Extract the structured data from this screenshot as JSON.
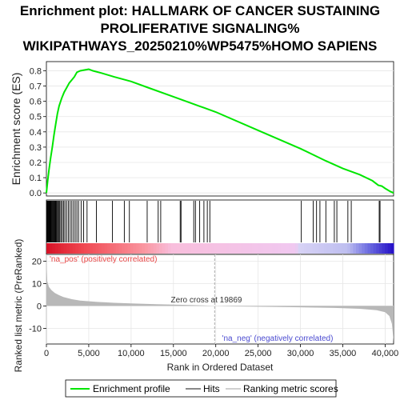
{
  "title": {
    "line1": "Enrichment plot: HALLMARK OF CANCER SUSTAINING",
    "line2": "PROLIFERATIVE SIGNALING%",
    "line3": "WIKIPATHWAYS_20250210%WP5475%HOMO SAPIENS"
  },
  "colors": {
    "es_line": "#00e600",
    "hits": "#000000",
    "pos_label": "#e84545",
    "neg_label": "#4a4ad0",
    "metric_fill": "#b8b8b8",
    "zero_line": "#aaaaaa"
  },
  "chart_data": [
    {
      "type": "line",
      "name": "enrichment-score-panel",
      "ylabel": "Enrichment score (ES)",
      "xlim": [
        0,
        41000
      ],
      "ylim": [
        -0.02,
        0.86
      ],
      "yticks": [
        "0.0",
        "0.1",
        "0.2",
        "0.3",
        "0.4",
        "0.5",
        "0.6",
        "0.7",
        "0.8"
      ],
      "grid": true,
      "points": [
        [
          0,
          0.0
        ],
        [
          150,
          0.08
        ],
        [
          300,
          0.15
        ],
        [
          500,
          0.23
        ],
        [
          700,
          0.3
        ],
        [
          900,
          0.38
        ],
        [
          1100,
          0.45
        ],
        [
          1300,
          0.52
        ],
        [
          1500,
          0.57
        ],
        [
          1800,
          0.62
        ],
        [
          2100,
          0.66
        ],
        [
          2400,
          0.69
        ],
        [
          2700,
          0.72
        ],
        [
          3000,
          0.74
        ],
        [
          3300,
          0.76
        ],
        [
          3600,
          0.79
        ],
        [
          4000,
          0.8
        ],
        [
          4500,
          0.805
        ],
        [
          5000,
          0.81
        ],
        [
          5500,
          0.8
        ],
        [
          6500,
          0.785
        ],
        [
          8000,
          0.76
        ],
        [
          10000,
          0.73
        ],
        [
          12000,
          0.69
        ],
        [
          15000,
          0.63
        ],
        [
          18000,
          0.57
        ],
        [
          20000,
          0.53
        ],
        [
          25000,
          0.41
        ],
        [
          30000,
          0.29
        ],
        [
          33000,
          0.21
        ],
        [
          35000,
          0.16
        ],
        [
          37000,
          0.12
        ],
        [
          38500,
          0.08
        ],
        [
          39200,
          0.05
        ],
        [
          39600,
          0.045
        ],
        [
          40000,
          0.03
        ],
        [
          40600,
          0.01
        ],
        [
          41000,
          0.0
        ]
      ]
    },
    {
      "type": "hits",
      "name": "hits-panel",
      "positions": [
        50,
        120,
        180,
        240,
        300,
        360,
        420,
        480,
        560,
        640,
        720,
        800,
        880,
        960,
        1040,
        1120,
        1200,
        1300,
        1400,
        1500,
        1600,
        1750,
        1900,
        2050,
        2200,
        2400,
        2600,
        2800,
        3000,
        3200,
        3400,
        3600,
        3800,
        4100,
        4400,
        4800,
        5900,
        7800,
        9200,
        9800,
        11900,
        13200,
        13500,
        15800,
        15900,
        17400,
        17600,
        18100,
        18600,
        19000,
        19300,
        30100,
        31500,
        31900,
        32300,
        33000,
        34000,
        34300,
        35600,
        36000,
        39300,
        39400
      ]
    },
    {
      "type": "area",
      "name": "ranked-metric-panel",
      "xlabel": "Rank in Ordered Dataset",
      "ylabel": "Ranked list metric (PreRanked)",
      "xlim": [
        0,
        41000
      ],
      "ylim": [
        -17,
        23
      ],
      "yticks": [
        "20",
        "10",
        "0",
        "-10"
      ],
      "xticks": [
        "0",
        "5,000",
        "10,000",
        "15,000",
        "20,000",
        "25,000",
        "30,000",
        "35,000",
        "40,000"
      ],
      "curve": [
        [
          0,
          21
        ],
        [
          100,
          11
        ],
        [
          300,
          8.5
        ],
        [
          600,
          7
        ],
        [
          1000,
          5.8
        ],
        [
          1500,
          4.8
        ],
        [
          2000,
          4
        ],
        [
          3000,
          3
        ],
        [
          4000,
          2.4
        ],
        [
          6000,
          1.8
        ],
        [
          8000,
          1.4
        ],
        [
          10000,
          1.1
        ],
        [
          13000,
          0.8
        ],
        [
          16000,
          0.5
        ],
        [
          18500,
          0.25
        ],
        [
          19869,
          0
        ],
        [
          22000,
          -0.2
        ],
        [
          26000,
          -0.4
        ],
        [
          30000,
          -0.6
        ],
        [
          34000,
          -0.9
        ],
        [
          37000,
          -1.3
        ],
        [
          39000,
          -1.9
        ],
        [
          40000,
          -2.8
        ],
        [
          40500,
          -4.5
        ],
        [
          40800,
          -8
        ],
        [
          41000,
          -16
        ]
      ],
      "annotations": {
        "pos": "'na_pos' (positively correlated)",
        "zero": "Zero cross at 19869",
        "neg": "'na_neg' (negatively correlated)"
      },
      "zero_cross": 19869
    }
  ],
  "legend": {
    "items": [
      {
        "label": "Enrichment profile"
      },
      {
        "label": "Hits"
      },
      {
        "label": "Ranking metric scores"
      }
    ]
  }
}
